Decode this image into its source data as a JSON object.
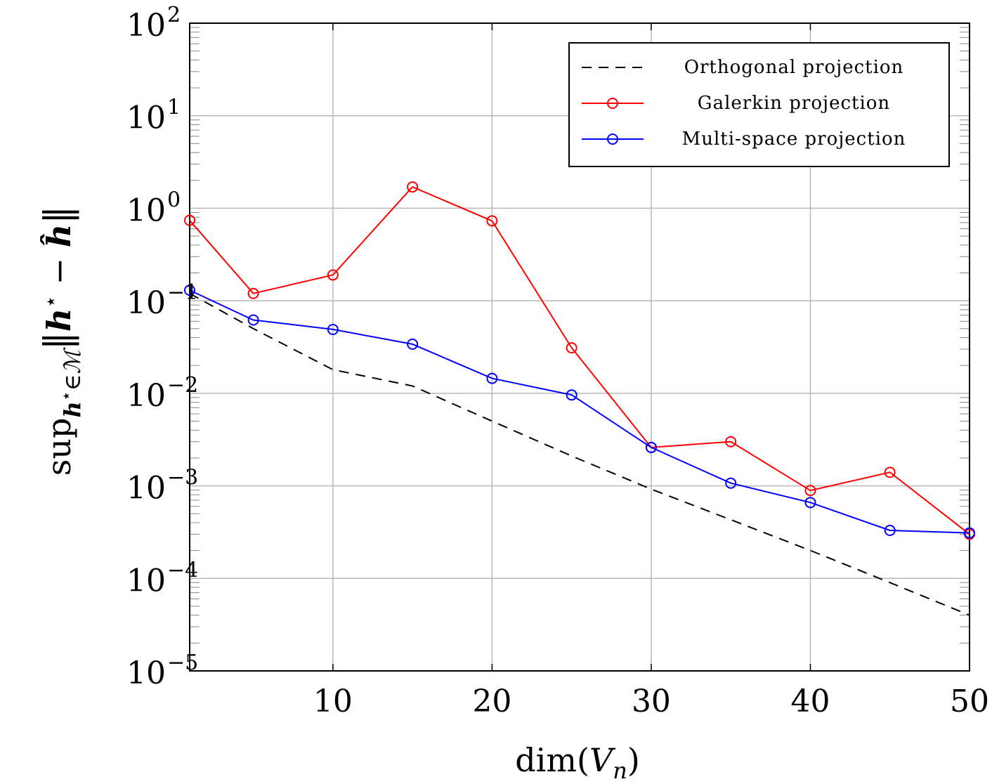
{
  "chart_data": {
    "type": "line",
    "xlabel": "dim(V_n)",
    "ylabel": "sup_{h*∈M} ||h* − ĥ||",
    "xlim": [
      1,
      50
    ],
    "ylim": [
      1e-05,
      100
    ],
    "yscale": "log",
    "grid": true,
    "legend_position": "top-right",
    "x_ticks": [
      10,
      20,
      30,
      40,
      50
    ],
    "y_ticks": [
      {
        "value": 1e-05,
        "base": "10",
        "exp": "−5"
      },
      {
        "value": 0.0001,
        "base": "10",
        "exp": "−4"
      },
      {
        "value": 0.001,
        "base": "10",
        "exp": "−3"
      },
      {
        "value": 0.01,
        "base": "10",
        "exp": "−2"
      },
      {
        "value": 0.1,
        "base": "10",
        "exp": "−1"
      },
      {
        "value": 1,
        "base": "10",
        "exp": "0"
      },
      {
        "value": 10,
        "base": "10",
        "exp": "1"
      },
      {
        "value": 100,
        "base": "10",
        "exp": "2"
      }
    ],
    "series": [
      {
        "name": "Orthogonal projection",
        "color": "#000000",
        "style": "dashed",
        "marker": "none",
        "x": [
          1,
          5,
          10,
          15,
          20,
          25,
          30,
          35,
          40,
          45,
          50
        ],
        "y": [
          0.12,
          0.05,
          0.018,
          0.012,
          0.005,
          0.0021,
          0.00092,
          0.00043,
          0.0002,
          9e-05,
          4e-05
        ]
      },
      {
        "name": "Galerkin projection",
        "color": "#ff0000",
        "style": "solid",
        "marker": "circle",
        "x": [
          1,
          5,
          10,
          15,
          20,
          25,
          30,
          35,
          40,
          45,
          50
        ],
        "y": [
          0.74,
          0.12,
          0.19,
          1.7,
          0.73,
          0.031,
          0.0026,
          0.003,
          0.00089,
          0.0014,
          0.0003
        ]
      },
      {
        "name": "Multi-space projection",
        "color": "#0000ff",
        "style": "solid",
        "marker": "circle",
        "x": [
          1,
          5,
          10,
          15,
          20,
          25,
          30,
          35,
          40,
          45,
          50
        ],
        "y": [
          0.13,
          0.062,
          0.049,
          0.034,
          0.0145,
          0.0096,
          0.0026,
          0.00107,
          0.00066,
          0.00033,
          0.00031
        ]
      }
    ]
  }
}
